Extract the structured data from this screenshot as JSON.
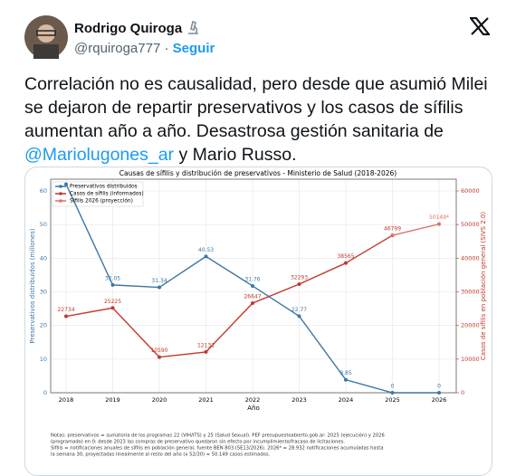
{
  "tweet": {
    "name": "Rodrigo Quiroga",
    "handle": "@rquiroga777",
    "separator": "·",
    "follow": "Seguir",
    "text_before": "Correlación no es causalidad, pero desde que asumió Milei se dejaron de repartir preservativos y los casos de sífilis aumentan año a año. Desastrosa gestión sanitaria de ",
    "mention": "@Mariolugones_ar",
    "text_after": " y Mario Russo."
  },
  "chart_data": {
    "type": "line",
    "title": "Causas de sífilis y distribución de preservativos - Ministerio de Salud (2018-2026)",
    "xlabel": "Año",
    "ylabel": "Preservativos distribuidos (millones)",
    "y2label": "Casos de sífilis en población general (SIVS 2.0)",
    "categories": [
      "2018",
      "2019",
      "2020",
      "2021",
      "2022",
      "2023",
      "2024",
      "2025",
      "2026"
    ],
    "ylim": [
      0,
      63.5
    ],
    "yticks": [
      0,
      10,
      20,
      30,
      40,
      50,
      60
    ],
    "y2lim": [
      0,
      63500
    ],
    "y2ticks": [
      0,
      10000,
      20000,
      30000,
      40000,
      50000,
      60000
    ],
    "grid": true,
    "legend": "upper left",
    "series": [
      {
        "name": "Preservativos distribuidos",
        "color": "#3b77a6",
        "values": [
          62,
          32.05,
          31.34,
          40.53,
          31.76,
          22.77,
          3.85,
          0,
          0
        ],
        "value_labels": [
          null,
          "32.05",
          "31.34",
          "40.53",
          "31.76",
          "22.77",
          "3.85",
          "0",
          "0"
        ]
      },
      {
        "name": "Casos de sífilis (informados)",
        "color": "#c0392b",
        "axis": "y2",
        "values": [
          22734,
          25225,
          10590,
          12131,
          26647,
          32293,
          38565,
          46799,
          null
        ],
        "value_labels": [
          "22734",
          "25225",
          "10590",
          "12131",
          "26647",
          "32293",
          "38565",
          "46799",
          null
        ]
      },
      {
        "name": "Sífilis 2026 (proyección)",
        "color": "#d9736a",
        "axis": "y2",
        "values": [
          null,
          null,
          null,
          null,
          null,
          null,
          null,
          46799,
          50149
        ],
        "value_labels": [
          null,
          null,
          null,
          null,
          null,
          null,
          null,
          null,
          "50149*"
        ]
      }
    ],
    "notes": [
      "Notas: preservativos = sumatoria de los programas 22 (VIH/ITS) y 25 (Salud Sexual). PEF presupuestoabierto.gob.ar: 2025 (ejecución) y 2026",
      "(programado) en 0: desde 2023 las compras de preservativo quedaron sin efecto por incumplimiento/fracaso de licitaciones.",
      "Sífilis = notificaciones anuales de sífilis en población general, fuente BEN 803 (SE13/2026). 2026* = 28.932 notificaciones acumuladas hasta",
      "la semana 30, proyectadas linealmente al resto del año (x 52/30) = 50.149 casos estimados."
    ]
  }
}
